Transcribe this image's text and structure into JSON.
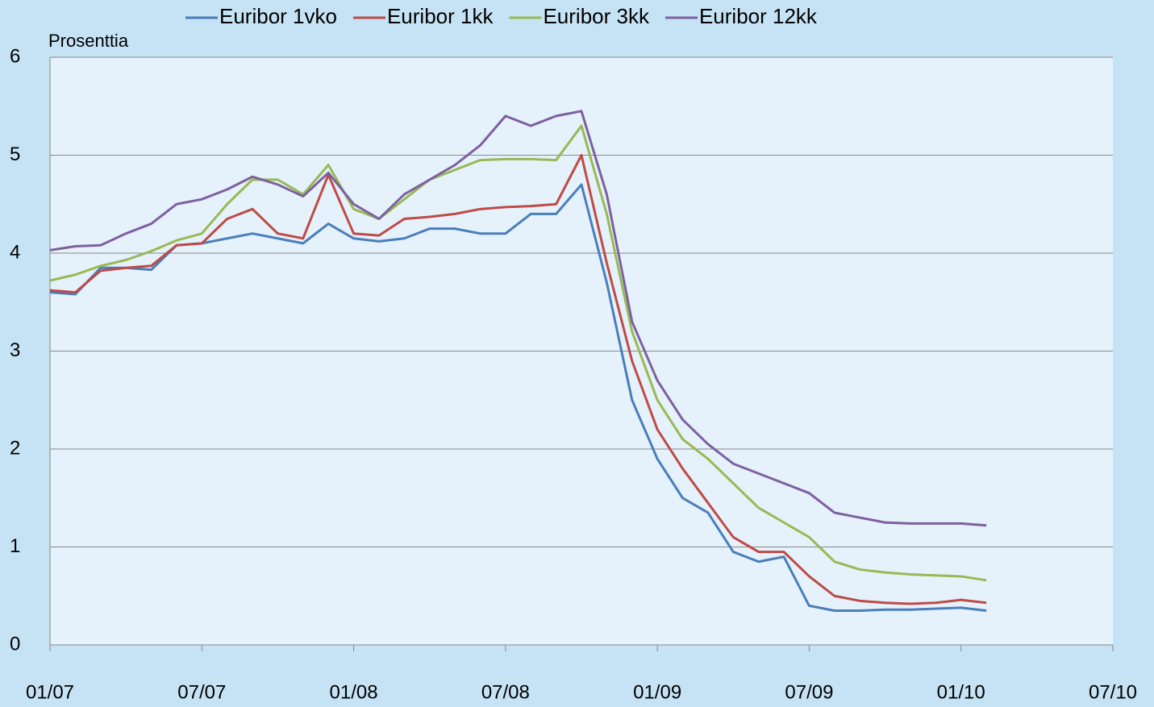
{
  "chart_data": {
    "type": "line",
    "y_label": "Prosenttia",
    "x": [
      "01/07",
      "02/07",
      "03/07",
      "04/07",
      "05/07",
      "06/07",
      "07/07",
      "08/07",
      "09/07",
      "10/07",
      "11/07",
      "12/07",
      "01/08",
      "02/08",
      "03/08",
      "04/08",
      "05/08",
      "06/08",
      "07/08",
      "08/08",
      "09/08",
      "10/08",
      "11/08",
      "12/08",
      "01/09",
      "02/09",
      "03/09",
      "04/09",
      "05/09",
      "06/09",
      "07/09",
      "08/09",
      "09/09",
      "10/09",
      "11/09",
      "12/09",
      "01/10",
      "02/10"
    ],
    "series": [
      {
        "name": "Euribor 1vko",
        "color": "#4a7ebb",
        "values": [
          3.6,
          3.58,
          3.85,
          3.85,
          3.83,
          4.08,
          4.1,
          4.15,
          4.2,
          4.15,
          4.1,
          4.3,
          4.15,
          4.12,
          4.15,
          4.25,
          4.25,
          4.2,
          4.2,
          4.4,
          4.4,
          4.7,
          3.7,
          2.5,
          1.9,
          1.5,
          1.35,
          0.95,
          0.85,
          0.9,
          0.4,
          0.35,
          0.35,
          0.36,
          0.36,
          0.37,
          0.38,
          0.35
        ]
      },
      {
        "name": "Euribor 1kk",
        "color": "#be4b48",
        "values": [
          3.62,
          3.6,
          3.82,
          3.85,
          3.87,
          4.08,
          4.1,
          4.35,
          4.45,
          4.2,
          4.15,
          4.8,
          4.2,
          4.18,
          4.35,
          4.37,
          4.4,
          4.45,
          4.47,
          4.48,
          4.5,
          5.0,
          3.9,
          2.9,
          2.2,
          1.8,
          1.45,
          1.1,
          0.95,
          0.95,
          0.7,
          0.5,
          0.45,
          0.43,
          0.42,
          0.43,
          0.46,
          0.43
        ]
      },
      {
        "name": "Euribor 3kk",
        "color": "#98b954",
        "values": [
          3.72,
          3.78,
          3.87,
          3.93,
          4.02,
          4.13,
          4.2,
          4.5,
          4.75,
          4.75,
          4.6,
          4.9,
          4.45,
          4.35,
          4.55,
          4.75,
          4.85,
          4.95,
          4.96,
          4.96,
          4.95,
          5.3,
          4.4,
          3.2,
          2.5,
          2.1,
          1.9,
          1.65,
          1.4,
          1.25,
          1.1,
          0.85,
          0.77,
          0.74,
          0.72,
          0.71,
          0.7,
          0.66
        ]
      },
      {
        "name": "Euribor 12kk",
        "color": "#7d60a0",
        "values": [
          4.03,
          4.07,
          4.08,
          4.2,
          4.3,
          4.5,
          4.55,
          4.65,
          4.78,
          4.7,
          4.58,
          4.82,
          4.5,
          4.35,
          4.6,
          4.75,
          4.9,
          5.1,
          5.4,
          5.3,
          5.4,
          5.45,
          4.6,
          3.3,
          2.7,
          2.3,
          2.05,
          1.85,
          1.75,
          1.65,
          1.55,
          1.35,
          1.3,
          1.25,
          1.24,
          1.24,
          1.24,
          1.22
        ]
      }
    ],
    "xlim": [
      "01/07",
      "07/10"
    ],
    "xticks": [
      "01/07",
      "07/07",
      "01/08",
      "07/08",
      "01/09",
      "07/09",
      "01/10",
      "07/10"
    ],
    "ylim": [
      0,
      6
    ],
    "yticks": [
      0,
      1,
      2,
      3,
      4,
      5,
      6
    ],
    "grid": true,
    "legend": "top"
  }
}
